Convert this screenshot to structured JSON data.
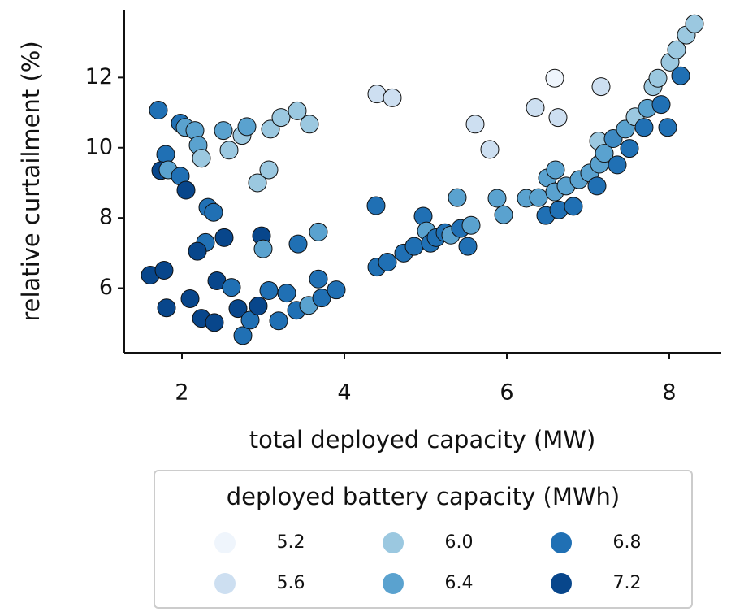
{
  "chart_data": {
    "type": "scatter",
    "xlabel": "total deployed capacity (MW)",
    "ylabel": "relative curtailment (%)",
    "xlim": [
      1.29,
      8.64
    ],
    "ylim": [
      4.16,
      13.93
    ],
    "xticks": [
      2,
      4,
      6,
      8
    ],
    "yticks": [
      6,
      8,
      10,
      12
    ],
    "x": [
      1.71,
      1.98,
      2.04,
      2.16,
      2.2,
      2.24,
      2.51,
      2.58,
      2.74,
      2.8,
      3.09,
      3.22,
      3.42,
      3.57,
      2.93,
      3.07,
      1.8,
      1.74,
      1.83,
      1.98,
      2.05,
      2.32,
      2.39,
      2.29,
      2.19,
      2.52,
      2.98,
      3.0,
      3.43,
      3.68,
      1.61,
      1.78,
      1.81,
      2.1,
      2.24,
      2.4,
      2.43,
      2.61,
      2.69,
      2.75,
      2.84,
      2.94,
      3.07,
      3.19,
      3.29,
      3.41,
      3.56,
      3.68,
      3.72,
      3.9,
      4.4,
      4.59,
      4.39,
      4.4,
      4.53,
      4.73,
      4.86,
      4.97,
      5.01,
      5.06,
      5.13,
      5.24,
      5.31,
      5.39,
      5.43,
      5.52,
      5.56,
      5.61,
      5.79,
      5.88,
      5.96,
      6.35,
      6.59,
      6.63,
      7.16,
      6.24,
      6.39,
      6.48,
      6.5,
      6.6,
      6.64,
      6.59,
      6.73,
      6.82,
      6.89,
      7.02,
      7.11,
      7.14,
      7.13,
      7.2,
      7.31,
      7.36,
      7.46,
      7.51,
      7.58,
      7.69,
      7.73,
      7.8,
      7.86,
      7.98,
      7.9,
      8.01,
      8.09,
      8.14,
      8.21,
      8.31
    ],
    "y": [
      11.07,
      10.7,
      10.58,
      10.49,
      10.07,
      9.7,
      10.49,
      9.93,
      10.35,
      10.6,
      10.53,
      10.86,
      11.05,
      10.67,
      9.0,
      9.37,
      9.81,
      9.35,
      9.37,
      9.19,
      8.79,
      8.3,
      8.16,
      7.3,
      7.05,
      7.44,
      7.49,
      7.12,
      7.26,
      7.6,
      6.37,
      6.51,
      5.44,
      5.7,
      5.14,
      5.02,
      6.21,
      6.02,
      5.42,
      4.65,
      5.09,
      5.49,
      5.93,
      5.07,
      5.86,
      5.37,
      5.51,
      6.26,
      5.72,
      5.95,
      11.53,
      11.42,
      8.35,
      6.6,
      6.74,
      7.0,
      7.19,
      8.05,
      7.63,
      7.28,
      7.44,
      7.58,
      7.51,
      8.58,
      7.7,
      7.19,
      7.79,
      10.67,
      9.95,
      8.56,
      8.09,
      11.14,
      11.98,
      10.86,
      11.74,
      8.56,
      8.58,
      8.07,
      9.14,
      9.37,
      8.23,
      8.74,
      8.91,
      8.33,
      9.09,
      9.28,
      8.91,
      9.53,
      10.19,
      9.84,
      10.26,
      9.51,
      10.53,
      9.98,
      10.88,
      10.58,
      11.12,
      11.74,
      11.98,
      10.58,
      11.23,
      12.44,
      12.79,
      12.05,
      13.21,
      13.53
    ],
    "hue": [
      6.8,
      6.8,
      6.4,
      6.4,
      6.4,
      6.0,
      6.4,
      6.0,
      6.0,
      6.4,
      6.0,
      6.0,
      6.0,
      6.0,
      6.0,
      6.0,
      6.8,
      7.2,
      6.4,
      6.8,
      7.2,
      6.8,
      6.8,
      6.8,
      7.2,
      7.2,
      7.2,
      6.4,
      6.8,
      6.4,
      7.2,
      7.2,
      7.2,
      7.2,
      7.2,
      7.2,
      7.2,
      6.8,
      7.2,
      6.8,
      6.8,
      7.2,
      6.8,
      6.8,
      6.8,
      6.8,
      6.4,
      6.8,
      6.8,
      6.8,
      5.6,
      5.6,
      6.8,
      6.8,
      6.8,
      6.8,
      6.8,
      6.8,
      6.4,
      6.8,
      6.8,
      6.8,
      6.4,
      6.4,
      6.8,
      6.8,
      6.4,
      5.6,
      5.6,
      6.4,
      6.4,
      5.6,
      5.2,
      5.6,
      5.6,
      6.4,
      6.4,
      6.8,
      6.4,
      6.4,
      6.8,
      6.4,
      6.4,
      6.8,
      6.4,
      6.4,
      6.8,
      6.4,
      6.0,
      6.4,
      6.6,
      6.8,
      6.4,
      6.8,
      6.0,
      6.8,
      6.4,
      6.0,
      6.0,
      6.8,
      6.8,
      6.0,
      6.0,
      6.8,
      6.0,
      6.0
    ],
    "legend": {
      "title": "deployed battery capacity (MWh)",
      "levels": [
        {
          "value": 5.2,
          "label": "5.2"
        },
        {
          "value": 5.6,
          "label": "5.6"
        },
        {
          "value": 6.0,
          "label": "6.0"
        },
        {
          "value": 6.4,
          "label": "6.4"
        },
        {
          "value": 6.8,
          "label": "6.8"
        },
        {
          "value": 7.2,
          "label": "7.2"
        }
      ],
      "colors": [
        "#eff5fc",
        "#cddff1",
        "#9bc8e0",
        "#5aa2cf",
        "#2070b4",
        "#08468b"
      ]
    }
  }
}
